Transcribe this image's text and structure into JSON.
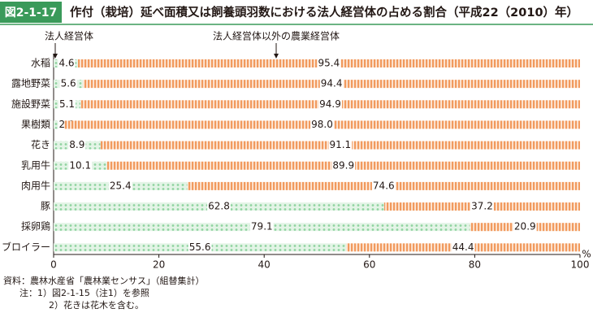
{
  "figure_number": "図2-1-17",
  "chart_data": {
    "type": "stacked-barh",
    "title": "作付（栽培）延べ面積又は飼養頭羽数における法人経営体の占める割合（平成22（2010）年）",
    "categories": [
      "水稲",
      "露地野菜",
      "施設野菜",
      "果樹類",
      "花き",
      "乳用牛",
      "肉用牛",
      "豚",
      "採卵鶏",
      "ブロイラー"
    ],
    "series": [
      {
        "name": "法人経営体",
        "color": "#8fd3a0",
        "pattern": "dots",
        "values": [
          4.6,
          5.6,
          5.1,
          2.0,
          8.9,
          10.1,
          25.4,
          62.8,
          79.1,
          55.6
        ],
        "value_labels": [
          "4.6",
          "5.6",
          "5.1",
          "2.0",
          "8.9",
          "10.1",
          "25.4",
          "62.8",
          "79.1",
          "55.6"
        ]
      },
      {
        "name": "法人経営体以外の農業経営体",
        "color": "#f19a5e",
        "pattern": "stripes",
        "values": [
          95.4,
          94.4,
          94.9,
          98.0,
          91.1,
          89.9,
          74.6,
          37.2,
          20.9,
          44.4
        ],
        "value_labels": [
          "95.4",
          "94.4",
          "94.9",
          "98.0",
          "91.1",
          "89.9",
          "74.6",
          "37.2",
          "20.9",
          "44.4"
        ]
      }
    ],
    "xlim": [
      0,
      100
    ],
    "xticks": [
      0,
      20,
      40,
      60,
      80,
      100
    ],
    "xlabel": "%"
  },
  "notes": [
    "資料：農林水産省「農林業センサス」（組替集計）",
    "注：1）図2-1-15（注1）を参照",
    "2）花きは花木を含む。"
  ]
}
